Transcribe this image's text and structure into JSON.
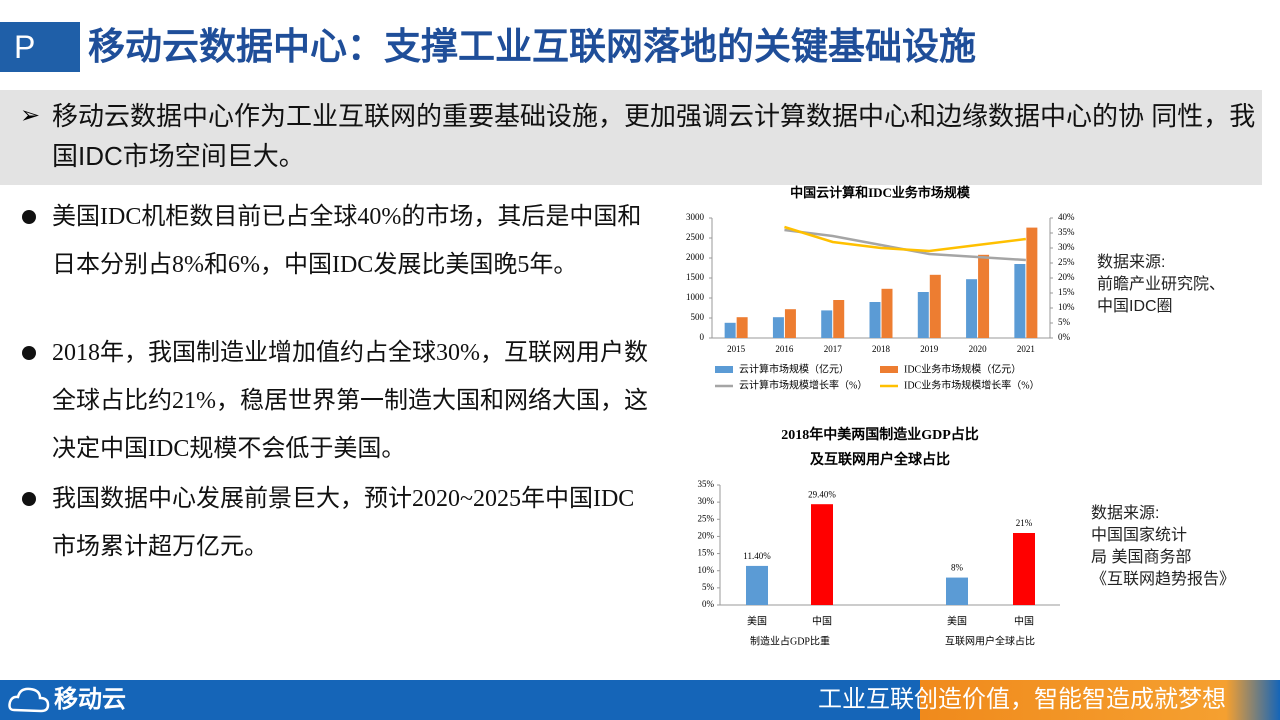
{
  "header": {
    "badge": "P",
    "title": "移动云数据中心：支撑工业互联网落地的关键基础设施"
  },
  "summary": {
    "marker": "➢",
    "text": "移动云数据中心作为工业互联网的重要基础设施，更加强调云计算数据中心和边缘数据中心的协 同性，我国IDC市场空间巨大。"
  },
  "bullets": [
    "美国IDC机柜数目前已占全球40%的市场，其后是中国和日本分别占8%和6%，中国IDC发展比美国晚5年。",
    "2018年，我国制造业增加值约占全球30%，互联网用户数全球占比约21%，稳居世界第一制造大国和网络大国，这决定中国IDC规模不会低于美国。",
    "我国数据中心发展前景巨大，预计2020~2025年中国IDC市场累计超万亿元。"
  ],
  "sources": [
    [
      "数据来源:",
      "前瞻产业研究院、",
      "中国IDC圈"
    ],
    [
      "数据来源:",
      "中国国家统计",
      "局 美国商务部",
      "《互联网趋势报告》"
    ]
  ],
  "footer": {
    "logo": "移动云",
    "slogan": "工业互联创造价值，智能智造成就梦想"
  },
  "chart_data": [
    {
      "type": "bar-line",
      "title": "中国云计算和IDC业务市场规模",
      "categories": [
        "2015",
        "2016",
        "2017",
        "2018",
        "2019",
        "2020",
        "2021"
      ],
      "series": [
        {
          "name": "云计算市场规模（亿元）",
          "type": "bar",
          "color": "#5b9bd5",
          "values": [
            380,
            520,
            690,
            900,
            1150,
            1470,
            1850
          ]
        },
        {
          "name": "IDC业务市场规模（亿元）",
          "type": "bar",
          "color": "#ed7d31",
          "values": [
            520,
            720,
            950,
            1230,
            1580,
            2080,
            2760
          ]
        },
        {
          "name": "云计算市场规模增长率（%）",
          "type": "line",
          "axis": "y2",
          "color": "#a5a5a5",
          "values": [
            null,
            36,
            34,
            31,
            28,
            27,
            26
          ]
        },
        {
          "name": "IDC业务市场规模增长率（%）",
          "type": "line",
          "axis": "y2",
          "color": "#ffc000",
          "values": [
            null,
            37,
            32,
            30,
            29,
            31,
            33
          ]
        }
      ],
      "ylim": [
        0,
        3000
      ],
      "yticks": [
        0,
        500,
        1000,
        1500,
        2000,
        2500,
        3000
      ],
      "y2lim": [
        0,
        40
      ],
      "y2ticks": [
        {
          "value": 0,
          "label": "0%"
        },
        {
          "value": 5,
          "label": "5%"
        },
        {
          "value": 10,
          "label": "10%"
        },
        {
          "value": 15,
          "label": "15%"
        },
        {
          "value": 20,
          "label": "20%"
        },
        {
          "value": 25,
          "label": "25%"
        },
        {
          "value": 30,
          "label": "30%"
        },
        {
          "value": 35,
          "label": "35%"
        },
        {
          "value": 40,
          "label": "40%"
        }
      ]
    },
    {
      "type": "bar",
      "title": [
        "2018年中美两国制造业GDP占比",
        "及互联网用户全球占比"
      ],
      "categories": [
        "美国",
        "中国",
        "美国",
        "中国"
      ],
      "groups": [
        "制造业占GDP比重",
        "互联网用户全球占比"
      ],
      "values": [
        11.4,
        29.4,
        8,
        21
      ],
      "value_labels": [
        "11.40%",
        "29.40%",
        "8%",
        "21%"
      ],
      "colors": [
        "#5b9bd5",
        "#ff0000",
        "#5b9bd5",
        "#ff0000"
      ],
      "ylim": [
        0,
        35
      ],
      "yticks": [
        {
          "value": 0,
          "label": "0%"
        },
        {
          "value": 5,
          "label": "5%"
        },
        {
          "value": 10,
          "label": "10%"
        },
        {
          "value": 15,
          "label": "15%"
        },
        {
          "value": 20,
          "label": "20%"
        },
        {
          "value": 25,
          "label": "25%"
        },
        {
          "value": 30,
          "label": "30%"
        },
        {
          "value": 35,
          "label": "35%"
        }
      ]
    }
  ]
}
